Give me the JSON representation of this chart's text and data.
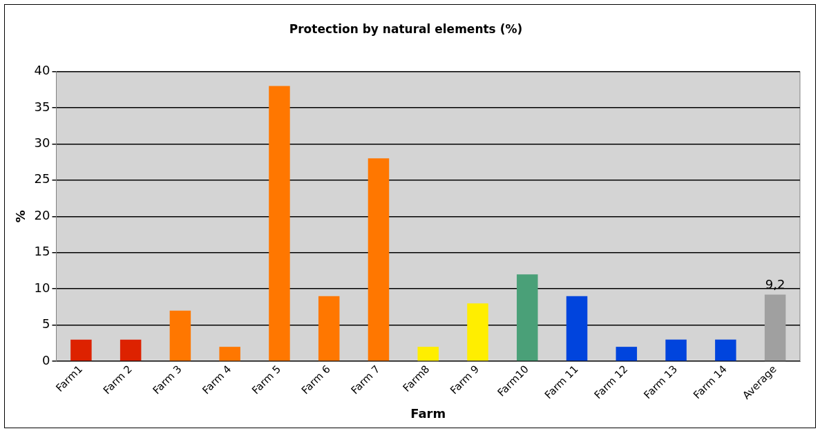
{
  "chart_data": {
    "type": "bar",
    "title": "Protection by natural elements (%)",
    "xlabel": "Farm",
    "ylabel": "%",
    "categories": [
      "Farm1",
      "Farm 2",
      "Farm 3",
      "Farm 4",
      "Farm 5",
      "Farm 6",
      "Farm 7",
      "Farm8",
      "Farm 9",
      "Farm10",
      "Farm 11",
      "Farm 12",
      "Farm 13",
      "Farm 14",
      "Average"
    ],
    "values": [
      3,
      3,
      7,
      2,
      38,
      9,
      28,
      2,
      8,
      12,
      9,
      2,
      3,
      3,
      9.2
    ],
    "colors": [
      "#dd2200",
      "#dd2200",
      "#ff7700",
      "#ff7700",
      "#ff7700",
      "#ff7700",
      "#ff7700",
      "#ffee00",
      "#ffee00",
      "#4aa078",
      "#0044dd",
      "#0044dd",
      "#0044dd",
      "#0044dd",
      "#a0a0a0"
    ],
    "value_labels": [
      null,
      null,
      null,
      null,
      null,
      null,
      null,
      null,
      null,
      null,
      null,
      null,
      null,
      null,
      "9,2"
    ],
    "ylim": [
      0,
      40
    ],
    "yticks": [
      0,
      5,
      10,
      15,
      20,
      25,
      30,
      35,
      40
    ],
    "grid": "y",
    "legend": false
  }
}
